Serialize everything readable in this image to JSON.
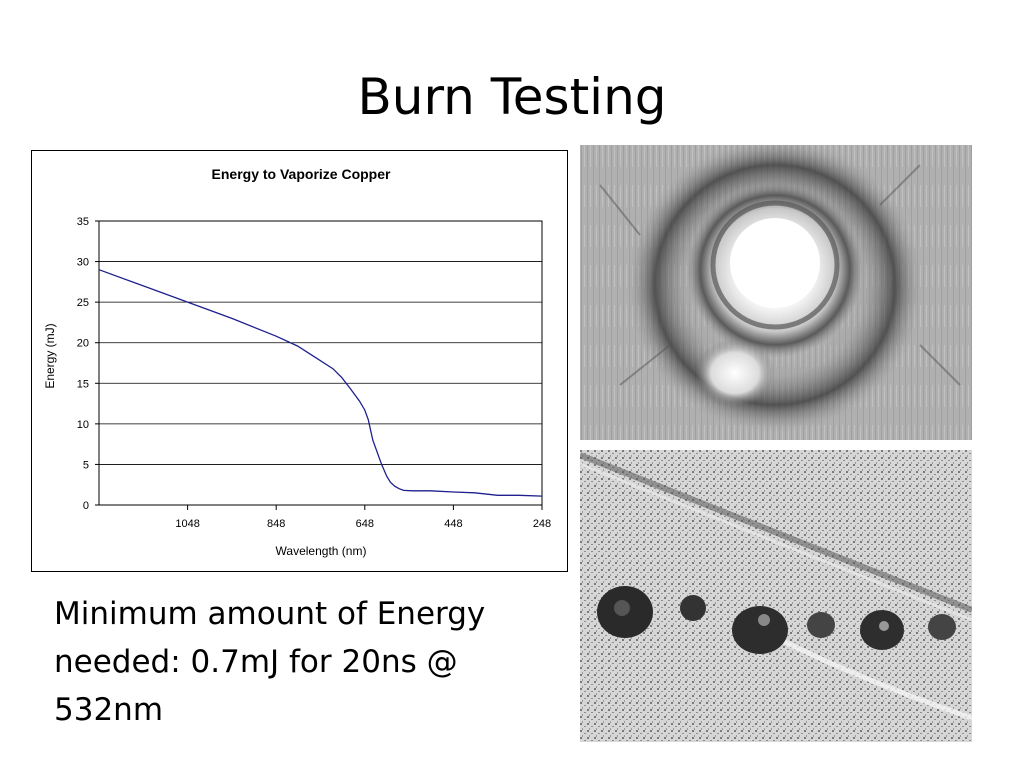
{
  "slide": {
    "title": "Burn Testing",
    "caption": "Minimum amount of Energy needed: 0.7mJ for 20ns @ 532nm"
  },
  "chart_data": {
    "type": "line",
    "title": "Energy to Vaporize Copper",
    "xlabel": "Wavelength (nm)",
    "ylabel": "Energy (mJ)",
    "x_reversed": true,
    "xlim": [
      1248,
      248
    ],
    "ylim": [
      0,
      35
    ],
    "x_ticks": [
      1048,
      848,
      648,
      448,
      248
    ],
    "y_ticks": [
      0,
      5,
      10,
      15,
      20,
      25,
      30,
      35
    ],
    "grid": "horizontal",
    "legend": "none",
    "line_color": "#1f1f8f",
    "series": [
      {
        "x": [
          1248,
          1148,
          1048,
          948,
          848,
          800,
          760,
          720,
          700,
          680,
          660,
          648,
          640,
          630,
          610,
          598,
          590,
          580,
          570,
          560,
          540,
          520,
          500,
          448,
          400,
          348,
          300,
          248
        ],
        "values": [
          29,
          27,
          25,
          23,
          20.8,
          19.6,
          18.2,
          16.8,
          15.7,
          14.3,
          12.8,
          11.7,
          10.5,
          8,
          5,
          3.5,
          2.8,
          2.3,
          2,
          1.8,
          1.75,
          1.75,
          1.75,
          1.6,
          1.5,
          1.2,
          1.2,
          1.1
        ]
      }
    ]
  },
  "photos": {
    "top": "laser-burn-crater-micrograph",
    "bottom": "burn-marks-row-micrograph"
  }
}
